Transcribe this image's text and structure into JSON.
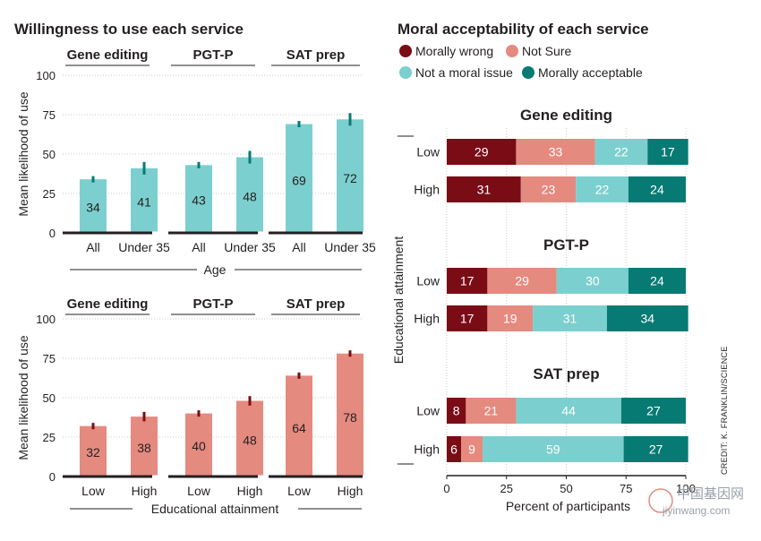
{
  "left": {
    "title": "Willingness to use each service",
    "ylabel": "Mean likelihood of use",
    "yticks": [
      "0",
      "25",
      "50",
      "75",
      "100"
    ]
  },
  "right": {
    "title": "Moral acceptability of each service",
    "ylabel": "Educational attainment",
    "xlabel": "Percent of participants",
    "xticks": [
      "0",
      "25",
      "50",
      "75",
      "100"
    ],
    "legend": [
      {
        "label": "Morally wrong",
        "color": "#7a0c16"
      },
      {
        "label": "Not Sure",
        "color": "#e58a7f"
      },
      {
        "label": "Not a moral issue",
        "color": "#7ccfcf"
      },
      {
        "label": "Morally acceptable",
        "color": "#087a74"
      }
    ]
  },
  "credit": "CREDIT: K. FRANKLIN/SCIENCE",
  "watermark": {
    "cn": "中国基因网",
    "url": "jiyinwang.com"
  },
  "chart_data": [
    {
      "type": "bar",
      "title": "Willingness to use each service",
      "group_xlabel": "Age",
      "ylabel": "Mean likelihood of use",
      "ylim": [
        0,
        100
      ],
      "bar_color": "#7ccfcf",
      "error_color": "#087a74",
      "panels": [
        {
          "title": "Gene editing",
          "categories": [
            "All",
            "Under 35"
          ],
          "values": [
            34,
            41
          ],
          "err": [
            2,
            4
          ]
        },
        {
          "title": "PGT-P",
          "categories": [
            "All",
            "Under 35"
          ],
          "values": [
            43,
            48
          ],
          "err": [
            2,
            4
          ]
        },
        {
          "title": "SAT prep",
          "categories": [
            "All",
            "Under 35"
          ],
          "values": [
            69,
            72
          ],
          "err": [
            2,
            4
          ]
        }
      ]
    },
    {
      "type": "bar",
      "group_xlabel": "Educational attainment",
      "ylabel": "Mean likelihood of use",
      "ylim": [
        0,
        100
      ],
      "bar_color": "#e58a7f",
      "error_color": "#7a0c16",
      "panels": [
        {
          "title": "Gene editing",
          "categories": [
            "Low",
            "High"
          ],
          "values": [
            32,
            38
          ],
          "err": [
            2,
            3
          ]
        },
        {
          "title": "PGT-P",
          "categories": [
            "Low",
            "High"
          ],
          "values": [
            40,
            48
          ],
          "err": [
            2,
            3
          ]
        },
        {
          "title": "SAT prep",
          "categories": [
            "Low",
            "High"
          ],
          "values": [
            64,
            78
          ],
          "err": [
            2,
            2
          ]
        }
      ]
    },
    {
      "type": "bar",
      "subtype": "stacked-horizontal",
      "title": "Moral acceptability of each service",
      "ylabel": "Educational attainment",
      "xlabel": "Percent of participants",
      "xlim": [
        0,
        100
      ],
      "series_names": [
        "Morally wrong",
        "Not Sure",
        "Not a moral issue",
        "Morally acceptable"
      ],
      "legend_position": "top-left",
      "panels": [
        {
          "title": "Gene editing",
          "rows": [
            {
              "label": "Low",
              "values": [
                29,
                33,
                22,
                17
              ]
            },
            {
              "label": "High",
              "values": [
                31,
                23,
                22,
                24
              ]
            }
          ]
        },
        {
          "title": "PGT-P",
          "rows": [
            {
              "label": "Low",
              "values": [
                17,
                29,
                30,
                24
              ]
            },
            {
              "label": "High",
              "values": [
                17,
                19,
                31,
                34
              ]
            }
          ]
        },
        {
          "title": "SAT prep",
          "rows": [
            {
              "label": "Low",
              "values": [
                8,
                21,
                44,
                27
              ]
            },
            {
              "label": "High",
              "values": [
                6,
                9,
                59,
                27
              ]
            }
          ]
        }
      ]
    }
  ]
}
